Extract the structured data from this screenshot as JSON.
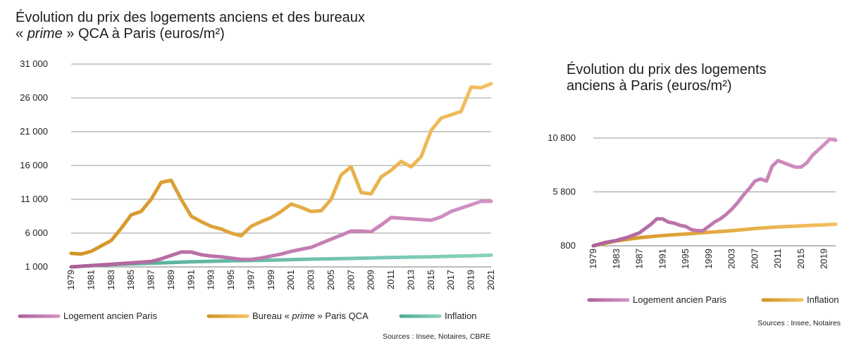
{
  "chart_data": [
    {
      "type": "line",
      "title_line1": "Évolution du prix des logements anciens et des bureaux",
      "title_prime": "prime",
      "title_line2_rest": " QCA à Paris (euros/m²)",
      "title_line2_prefix": "« ",
      "title_line2_suffix": " »",
      "y_ticks": [
        1000,
        6000,
        11000,
        16000,
        21000,
        26000,
        31000
      ],
      "y_tick_labels": [
        "1 000",
        "6 000",
        "11 000",
        "16 000",
        "21 000",
        "26 000",
        "31 000"
      ],
      "ylim": [
        1000,
        31000
      ],
      "x_tick_labels": [
        "1979",
        "1981",
        "1983",
        "1985",
        "1987",
        "1989",
        "1991",
        "1993",
        "1995",
        "1997",
        "1999",
        "2001",
        "2003",
        "2005",
        "2007",
        "2009",
        "2011",
        "2013",
        "2015",
        "2017",
        "2019",
        "2021"
      ],
      "xlim": [
        1979,
        2021
      ],
      "series": [
        {
          "name": "Bureau « prime » Paris QCA",
          "legend_prefix": "Bureau « ",
          "legend_prime": "prime",
          "legend_suffix": " » Paris QCA",
          "color": "#EFA92A",
          "x": [
            1979,
            1980,
            1981,
            1982,
            1983,
            1984,
            1985,
            1986,
            1987,
            1988,
            1989,
            1990,
            1991,
            1992,
            1993,
            1994,
            1995,
            1996,
            1997,
            1998,
            1999,
            2000,
            2001,
            2002,
            2003,
            2004,
            2005,
            2006,
            2007,
            2008,
            2009,
            2010,
            2011,
            2012,
            2013,
            2014,
            2015,
            2016,
            2017,
            2018,
            2019,
            2020,
            2021
          ],
          "y": [
            3000,
            2900,
            3300,
            4100,
            4900,
            6700,
            8700,
            9200,
            11000,
            13500,
            13800,
            11000,
            8500,
            7700,
            7000,
            6600,
            6000,
            5600,
            7000,
            7700,
            8300,
            9200,
            10300,
            9800,
            9200,
            9300,
            11000,
            14600,
            15800,
            12000,
            11800,
            14300,
            15300,
            16600,
            15800,
            17300,
            21200,
            23000,
            23500,
            24000,
            27600,
            27500,
            28100
          ]
        },
        {
          "name": "Logement ancien Paris",
          "color": "#C66FB0",
          "x": [
            1979,
            1980,
            1981,
            1982,
            1983,
            1984,
            1985,
            1986,
            1987,
            1988,
            1989,
            1990,
            1991,
            1992,
            1993,
            1994,
            1995,
            1996,
            1997,
            1998,
            1999,
            2000,
            2001,
            2002,
            2003,
            2004,
            2005,
            2006,
            2007,
            2008,
            2009,
            2010,
            2011,
            2012,
            2013,
            2014,
            2015,
            2016,
            2017,
            2018,
            2019,
            2020,
            2021
          ],
          "y": [
            1000,
            1100,
            1200,
            1300,
            1400,
            1500,
            1600,
            1700,
            1800,
            2200,
            2700,
            3200,
            3200,
            2800,
            2600,
            2500,
            2300,
            2100,
            2100,
            2300,
            2600,
            2900,
            3300,
            3600,
            3900,
            4500,
            5100,
            5700,
            6300,
            6300,
            6200,
            7200,
            8300,
            8200,
            8100,
            8000,
            7900,
            8400,
            9200,
            9700,
            10200,
            10700,
            10700
          ]
        },
        {
          "name": "Inflation",
          "color": "#5DC3A8",
          "x": [
            1979,
            1983,
            1987,
            1991,
            1995,
            1999,
            2003,
            2007,
            2011,
            2015,
            2019,
            2021
          ],
          "y": [
            1000,
            1350,
            1550,
            1750,
            1900,
            2000,
            2150,
            2250,
            2400,
            2500,
            2650,
            2750
          ]
        }
      ],
      "source": "Sources : Insee, Notaires, CBRE"
    },
    {
      "type": "line",
      "title_line1": "Évolution du prix des logements",
      "title_line2": "anciens à Paris (euros/m²)",
      "y_ticks": [
        800,
        5800,
        10800
      ],
      "y_tick_labels": [
        "800",
        "5 800",
        "10 800"
      ],
      "ylim": [
        800,
        10800
      ],
      "x_tick_labels": [
        "1979",
        "1983",
        "1987",
        "1991",
        "1995",
        "1999",
        "2003",
        "2007",
        "2011",
        "2015",
        "2019"
      ],
      "xlim": [
        1979,
        2021
      ],
      "series": [
        {
          "name": "Logement ancien Paris",
          "color": "#C66FB0",
          "x": [
            1979,
            1981,
            1983,
            1985,
            1987,
            1989,
            1990,
            1991,
            1992,
            1993,
            1994,
            1995,
            1996,
            1997,
            1998,
            1999,
            2000,
            2001,
            2002,
            2003,
            2004,
            2005,
            2006,
            2007,
            2008,
            2009,
            2010,
            2011,
            2012,
            2013,
            2014,
            2015,
            2016,
            2017,
            2018,
            2019,
            2020,
            2021
          ],
          "y": [
            800,
            1100,
            1300,
            1600,
            2000,
            2800,
            3300,
            3300,
            3000,
            2900,
            2700,
            2600,
            2300,
            2200,
            2200,
            2600,
            3000,
            3300,
            3700,
            4200,
            4800,
            5500,
            6100,
            6800,
            7000,
            6800,
            8200,
            8700,
            8500,
            8300,
            8100,
            8100,
            8500,
            9200,
            9700,
            10200,
            10700,
            10600
          ]
        },
        {
          "name": "Inflation",
          "color": "#EFA92A",
          "x": [
            1979,
            1983,
            1987,
            1991,
            1995,
            1999,
            2003,
            2007,
            2011,
            2015,
            2019,
            2021
          ],
          "y": [
            800,
            1250,
            1550,
            1750,
            1900,
            2050,
            2200,
            2400,
            2550,
            2650,
            2750,
            2800
          ]
        }
      ],
      "source": "Sources : Insee, Notaires"
    }
  ]
}
